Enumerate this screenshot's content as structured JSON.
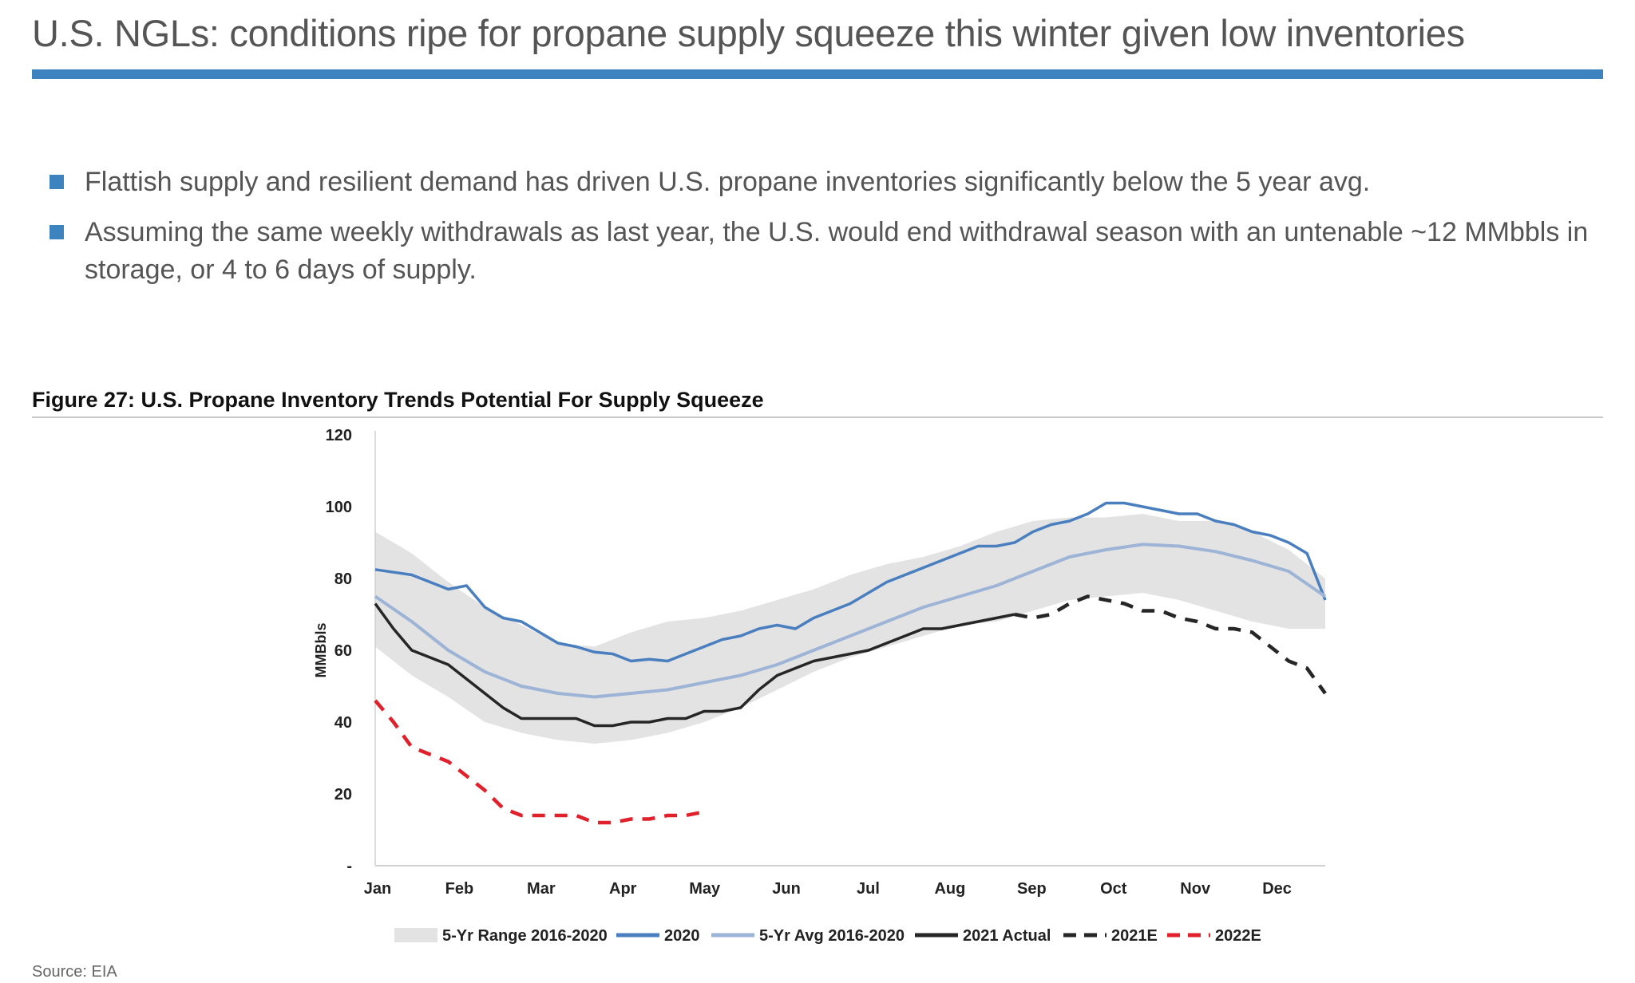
{
  "page": {
    "title": "U.S. NGLs: conditions ripe for propane supply squeeze this winter given low inventories",
    "bullets": [
      "Flattish supply and resilient demand has driven U.S. propane inventories significantly below the 5 year avg.",
      "Assuming the same weekly withdrawals as last year, the U.S. would end withdrawal season with an untenable ~12 MMbbls in storage, or 4 to 6 days of supply."
    ],
    "figure_title": "Figure 27: U.S. Propane Inventory Trends Potential For Supply Squeeze",
    "source": "Source: EIA",
    "colors": {
      "accent": "#3d83c0",
      "range_fill": "#e3e3e3",
      "s2020": "#4a7fbf",
      "avg": "#9db4d6",
      "actual": "#262626",
      "e2021": "#262626",
      "e2022": "#e0202a"
    }
  },
  "chart_data": {
    "type": "line",
    "title": "Figure 27: U.S. Propane Inventory Trends Potential For Supply Squeeze",
    "xlabel": "",
    "ylabel": "MMBbls",
    "ylim": [
      0,
      120
    ],
    "yticks": [
      "-",
      "20",
      "40",
      "60",
      "80",
      "100",
      "120"
    ],
    "months": [
      "Jan",
      "Feb",
      "Mar",
      "Apr",
      "May",
      "Jun",
      "Jul",
      "Aug",
      "Sep",
      "Oct",
      "Nov",
      "Dec"
    ],
    "x_unit": "week of year",
    "legend_placement": "bottom",
    "band": {
      "name": "5-Yr Range 2016-2020",
      "x": [
        1,
        3,
        5,
        7,
        9,
        11,
        13,
        15,
        17,
        19,
        21,
        23,
        25,
        27,
        29,
        31,
        33,
        35,
        37,
        39,
        41,
        43,
        45,
        47,
        49,
        51,
        53
      ],
      "upper": [
        93,
        87,
        79,
        72,
        67,
        62,
        61,
        65,
        68,
        69,
        71,
        74,
        77,
        81,
        84,
        86,
        89,
        93,
        96,
        97,
        97,
        98,
        96,
        96,
        93,
        88,
        80
      ],
      "lower": [
        61,
        53,
        47,
        40,
        37,
        35,
        34,
        35,
        37,
        40,
        44,
        49,
        54,
        58,
        61,
        64,
        67,
        68,
        71,
        74,
        75,
        76,
        74,
        71,
        68,
        66,
        66
      ]
    },
    "series": [
      {
        "name": "2020",
        "style": "solid",
        "x": [
          1,
          3,
          5,
          6,
          7,
          8,
          9,
          10,
          11,
          12,
          13,
          14,
          15,
          16,
          17,
          18,
          19,
          20,
          21,
          22,
          23,
          24,
          25,
          26,
          27,
          28,
          29,
          30,
          31,
          32,
          33,
          34,
          35,
          36,
          37,
          38,
          39,
          40,
          41,
          42,
          43,
          44,
          45,
          46,
          47,
          48,
          49,
          50,
          51,
          52,
          53
        ],
        "values": [
          82.5,
          81,
          77,
          78,
          72,
          69,
          68,
          65,
          62,
          61,
          59.5,
          59,
          57,
          57.5,
          57,
          59,
          61,
          63,
          64,
          66,
          67,
          66,
          69,
          71,
          73,
          76,
          79,
          81,
          83,
          85,
          87,
          89,
          89,
          90,
          93,
          95,
          96,
          98,
          101,
          101,
          100,
          99,
          98,
          98,
          96,
          95,
          93,
          92,
          90,
          87,
          74
        ]
      },
      {
        "name": "5-Yr Avg 2016-2020",
        "style": "solid",
        "x": [
          1,
          3,
          5,
          7,
          9,
          11,
          13,
          15,
          17,
          19,
          21,
          23,
          25,
          27,
          29,
          31,
          33,
          35,
          37,
          39,
          41,
          43,
          45,
          47,
          49,
          51,
          53
        ],
        "values": [
          75,
          68,
          60,
          54,
          50,
          48,
          47,
          48,
          49,
          51,
          53,
          56,
          60,
          64,
          68,
          72,
          75,
          78,
          82,
          86,
          88,
          89.5,
          89,
          87.5,
          85,
          82,
          75
        ]
      },
      {
        "name": "2021 Actual",
        "style": "solid",
        "x": [
          1,
          2,
          3,
          4,
          5,
          6,
          7,
          8,
          9,
          10,
          11,
          12,
          13,
          14,
          15,
          16,
          17,
          18,
          19,
          20,
          21,
          22,
          23,
          24,
          25,
          26,
          27,
          28,
          29,
          30,
          31,
          32,
          33,
          34,
          35,
          36
        ],
        "values": [
          73,
          66,
          60,
          58,
          56,
          52,
          48,
          44,
          41,
          41,
          41,
          41,
          39,
          39,
          40,
          40,
          41,
          41,
          43,
          43,
          44,
          49,
          53,
          55,
          57,
          58,
          59,
          60,
          62,
          64,
          66,
          66,
          67,
          68,
          69,
          70
        ]
      },
      {
        "name": "2021E",
        "style": "dashed",
        "x": [
          36,
          37,
          38,
          39,
          40,
          41,
          42,
          43,
          44,
          45,
          46,
          47,
          48,
          49,
          50,
          51,
          52,
          53
        ],
        "values": [
          70,
          69,
          70,
          73,
          75,
          74,
          73,
          71,
          71,
          69,
          68,
          66,
          66,
          65,
          61,
          57,
          55,
          48
        ]
      },
      {
        "name": "2022E",
        "style": "dashed",
        "x": [
          1,
          2,
          3,
          4,
          5,
          6,
          7,
          8,
          9,
          10,
          11,
          12,
          13,
          14,
          15,
          16,
          17,
          18,
          19
        ],
        "values": [
          46,
          40,
          33,
          31,
          29,
          25,
          21,
          16,
          14,
          14,
          14,
          14,
          12,
          12,
          13,
          13,
          14,
          14,
          15
        ]
      }
    ]
  }
}
